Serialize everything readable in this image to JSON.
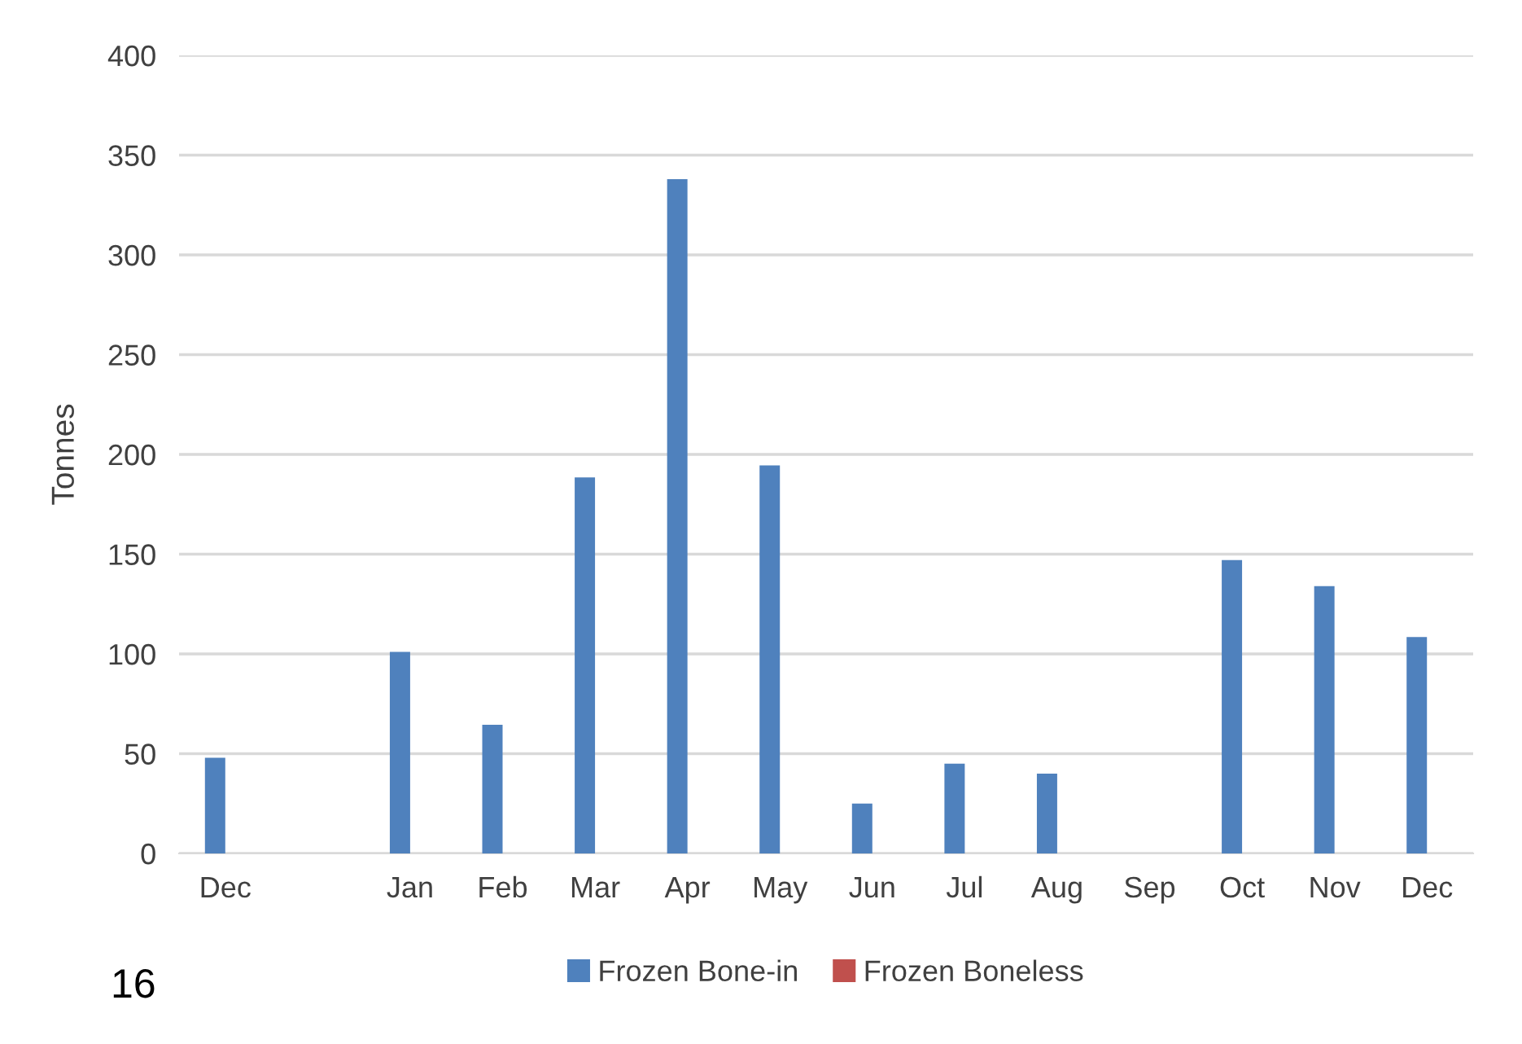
{
  "chart_data": {
    "type": "bar",
    "ylabel": "Tonnes",
    "categories": [
      "Dec",
      null,
      "Jan",
      "Feb",
      "Mar",
      "Apr",
      "May",
      "Jun",
      "Jul",
      "Aug",
      "Sep",
      "Oct",
      "Nov",
      "Dec"
    ],
    "series": [
      {
        "name": "Frozen Bone-in",
        "color": "#4f81bd",
        "values": [
          48,
          null,
          101,
          64.5,
          188.5,
          338,
          194.5,
          25,
          45,
          40,
          0,
          147,
          134,
          108.5
        ]
      },
      {
        "name": "Frozen Boneless",
        "color": "#c0504d",
        "values": [
          0,
          null,
          0,
          0,
          0,
          0,
          0,
          0,
          0,
          0,
          0,
          0,
          0,
          0
        ]
      }
    ],
    "ylim": [
      0,
      400
    ],
    "yticks": [
      0,
      50,
      100,
      150,
      200,
      250,
      300,
      350,
      400
    ],
    "grid": "y",
    "legend": "bottom",
    "annotations": [
      "16"
    ]
  }
}
